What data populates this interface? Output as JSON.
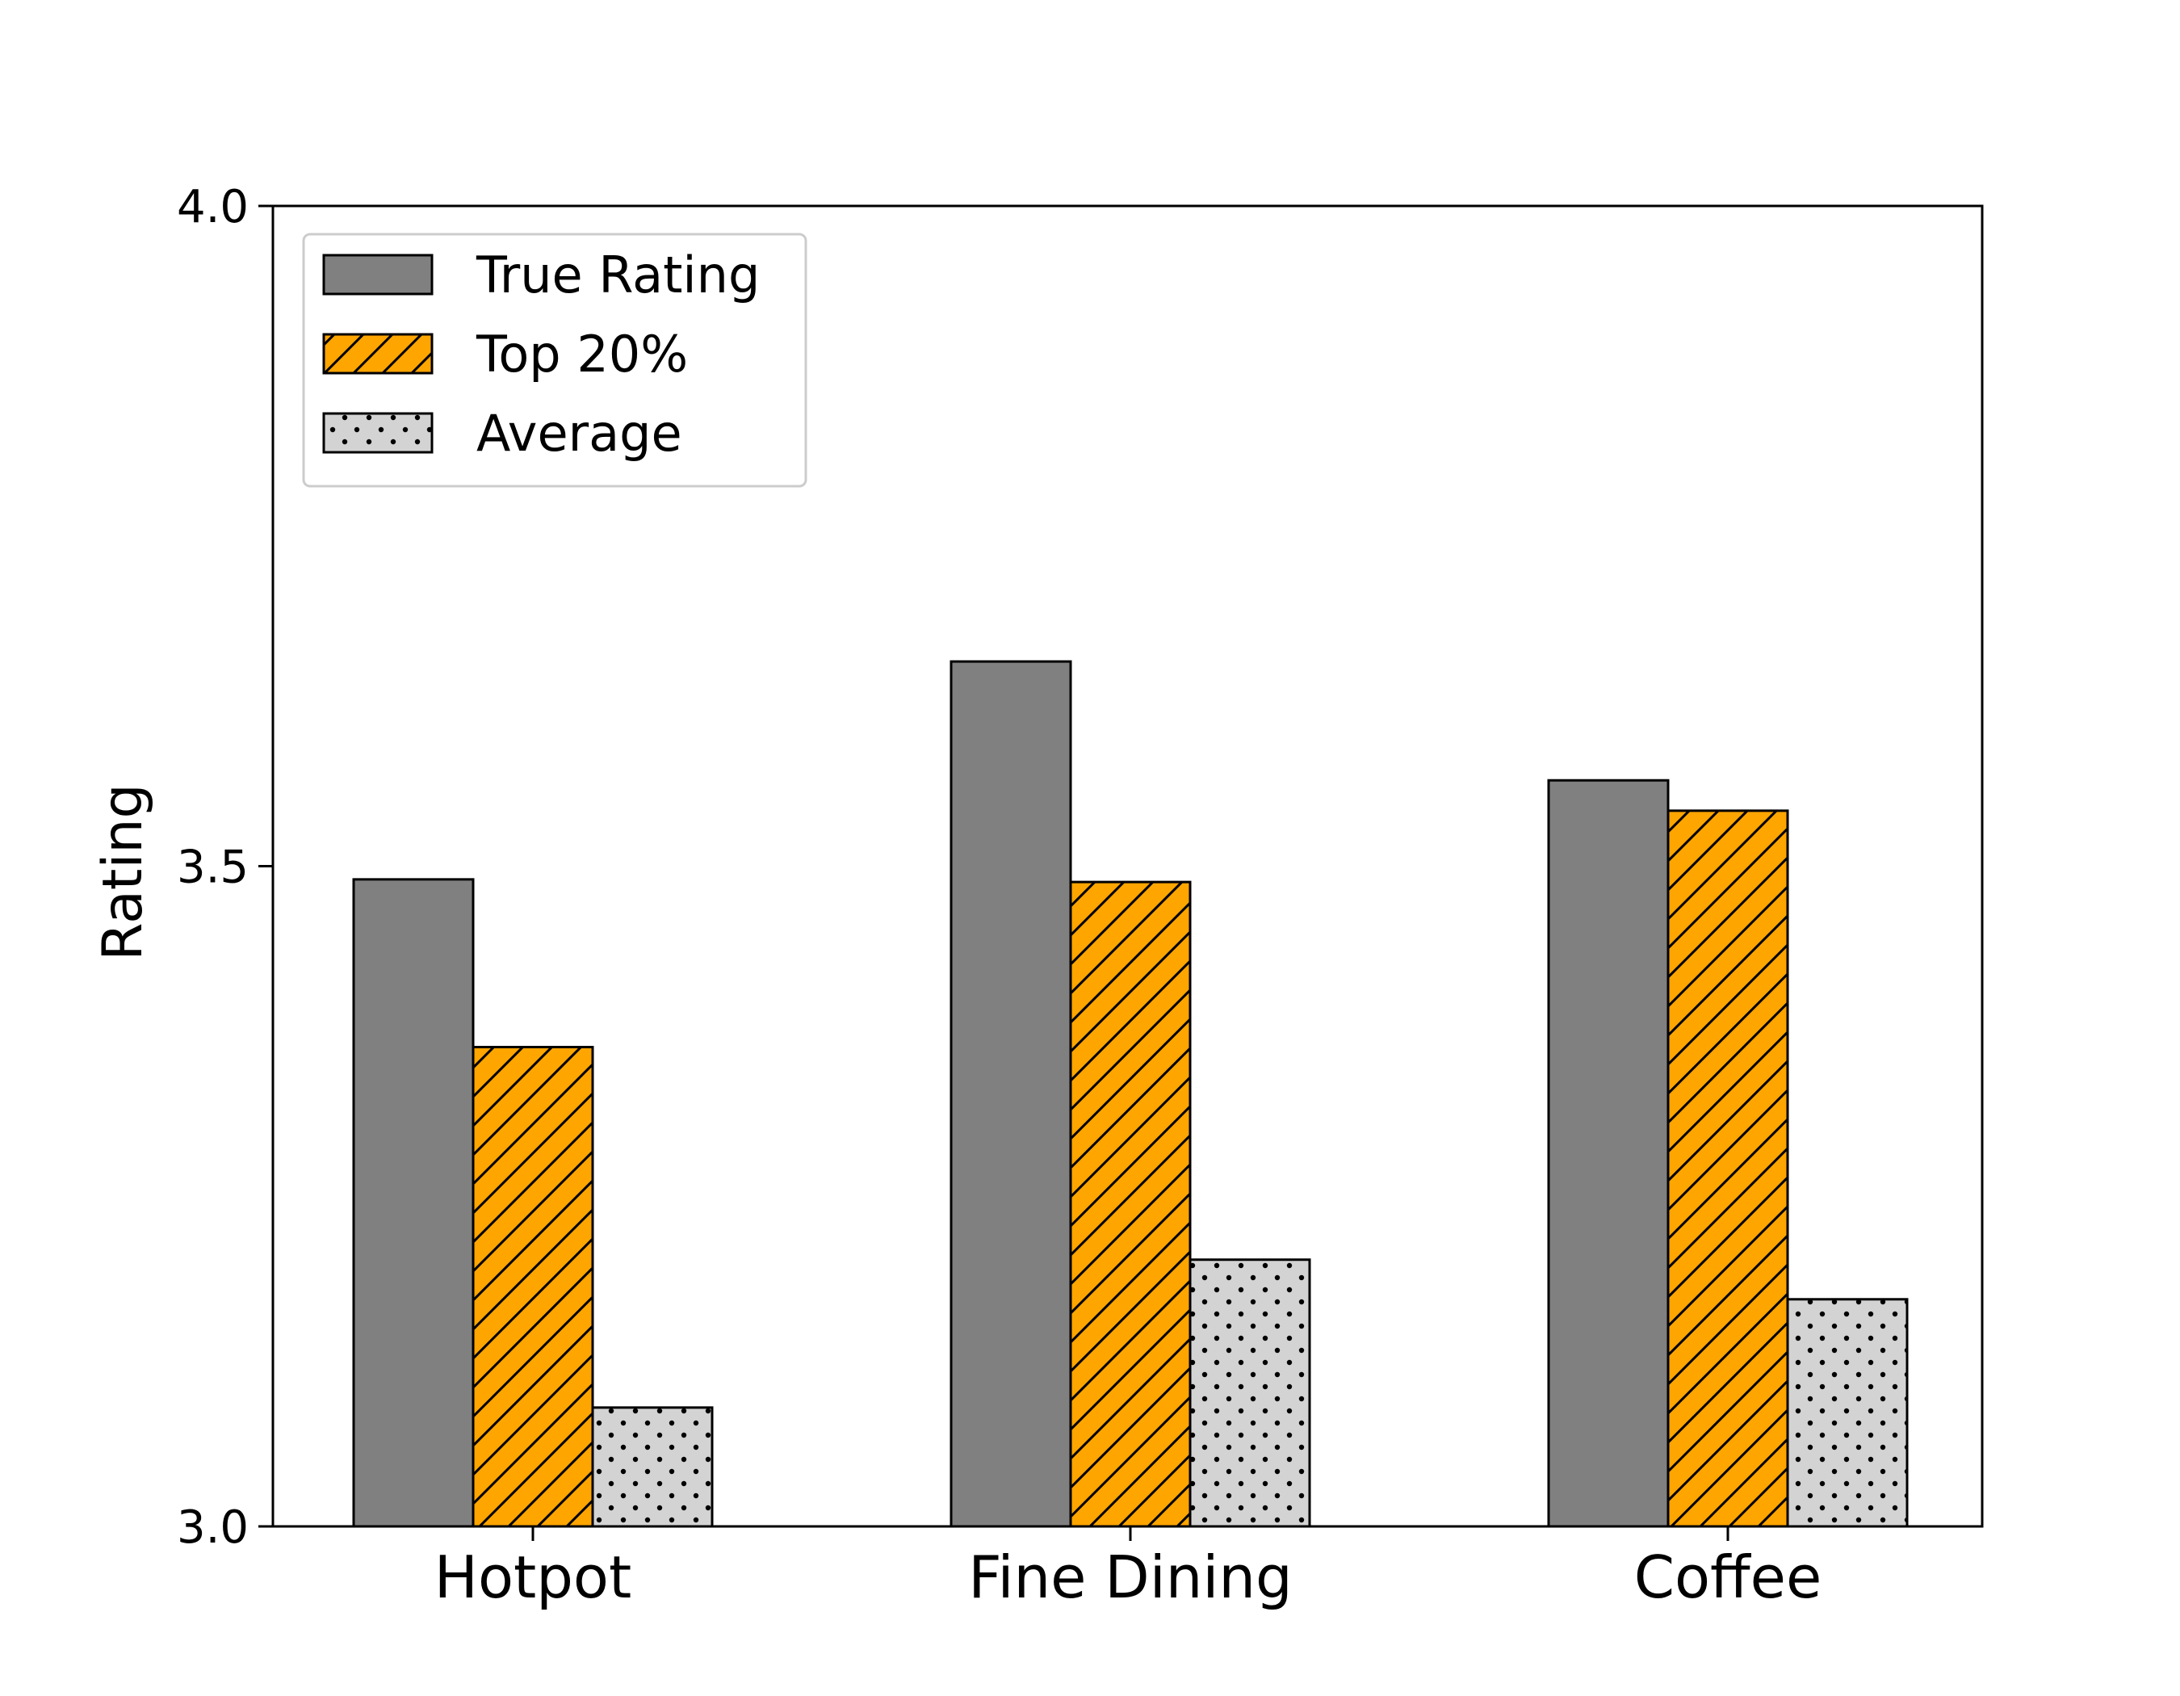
{
  "chart_data": {
    "type": "bar",
    "categories": [
      "Hotpot",
      "Fine Dining",
      "Coffee"
    ],
    "series": [
      {
        "name": "True Rating",
        "values": [
          3.49,
          3.655,
          3.565
        ],
        "color": "#808080",
        "pattern": "solid"
      },
      {
        "name": "Top 20%",
        "values": [
          3.363,
          3.488,
          3.542
        ],
        "color": "#FFA500",
        "pattern": "diagonal-hatch"
      },
      {
        "name": "Average",
        "values": [
          3.09,
          3.202,
          3.172
        ],
        "color": "#D3D3D3",
        "pattern": "dots"
      }
    ],
    "ylabel": "Rating",
    "ylim": [
      3.0,
      4.0
    ],
    "yticks": [
      "3.0",
      "3.5",
      "4.0"
    ],
    "legend_position": "top-left",
    "grid": false
  }
}
